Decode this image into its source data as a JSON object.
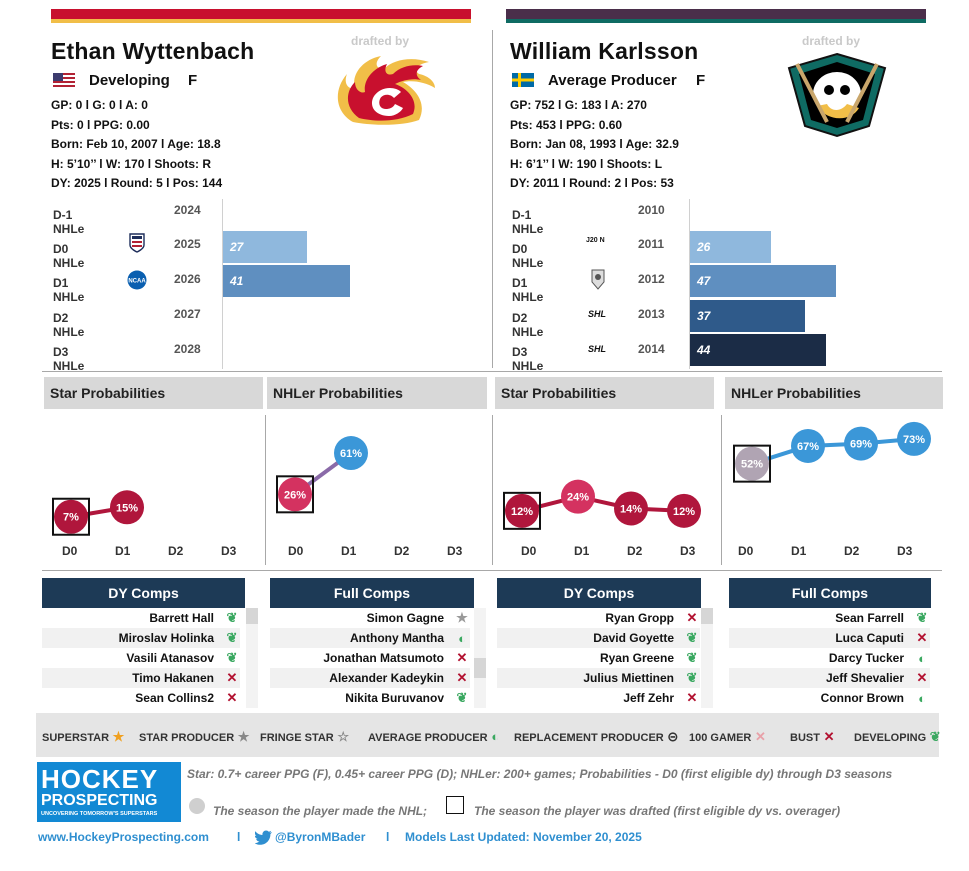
{
  "left": {
    "stripe_color_top": "#c8102e",
    "stripe_color_bottom": "#f1be48",
    "name": "Ethan Wyttenbach",
    "status": "Developing",
    "position": "F",
    "flag": "usa-flag-icon",
    "drafted_by_label": "drafted by",
    "team_logo": "calgary-flames-logo",
    "stats": [
      "GP: 0 l G: 0 l A: 0",
      "Pts: 0 l PPG: 0.00",
      "Born: Feb 10, 2007 l Age: 18.8",
      "H: 5’10’’ l W: 170 l Shoots: R",
      "DY: 2025 l Round: 5 l Pos: 144"
    ],
    "nhle_rows": [
      {
        "label": "D-1 NHLe",
        "year": "2024",
        "league_icon": "",
        "value": ""
      },
      {
        "label": "D0 NHLe",
        "year": "2025",
        "league_icon": "usa-hockey-icon",
        "value": "27"
      },
      {
        "label": "D1 NHLe",
        "year": "2026",
        "league_icon": "ncaa-icon",
        "value": "41"
      },
      {
        "label": "D2 NHLe",
        "year": "2027",
        "league_icon": "",
        "value": ""
      },
      {
        "label": "D3 NHLe",
        "year": "2028",
        "league_icon": "",
        "value": ""
      }
    ],
    "star_title": "Star Probabilities",
    "nhler_title": "NHLer Probabilities",
    "star_probs": [
      "7%",
      "15%"
    ],
    "nhler_probs": [
      "26%",
      "61%"
    ],
    "dy_comps_title": "DY Comps",
    "full_comps_title": "Full Comps",
    "dy_comps": [
      {
        "name": "Barrett Hall",
        "icon": "developing-leaf-icon"
      },
      {
        "name": "Miroslav Holinka",
        "icon": "developing-leaf-icon"
      },
      {
        "name": "Vasili Atanasov",
        "icon": "developing-leaf-icon"
      },
      {
        "name": "Timo Hakanen",
        "icon": "bust-x-icon"
      },
      {
        "name": "Sean Collins2",
        "icon": "bust-x-icon"
      }
    ],
    "full_comps": [
      {
        "name": "Simon Gagne",
        "icon": "star-producer-star-icon"
      },
      {
        "name": "Anthony Mantha",
        "icon": "average-producer-half-icon"
      },
      {
        "name": "Jonathan Matsumoto",
        "icon": "bust-x-icon"
      },
      {
        "name": "Alexander Kadeykin",
        "icon": "bust-x-icon"
      },
      {
        "name": "Nikita Buruvanov",
        "icon": "developing-leaf-icon"
      }
    ]
  },
  "right": {
    "stripe_color_top": "#4a2e4a",
    "stripe_color_bottom": "#0f6b63",
    "name": "William Karlsson",
    "status": "Average Producer",
    "position": "F",
    "flag": "sweden-flag-icon",
    "drafted_by_label": "drafted by",
    "team_logo": "anaheim-ducks-logo",
    "stats": [
      "GP: 752 l G: 183 l A: 270",
      "Pts: 453 l PPG: 0.60",
      "Born: Jan 08, 1993 l Age: 32.9",
      "H: 6’1’’ l W: 190 l Shoots: L",
      "DY: 2011 l Round: 2 l Pos: 53"
    ],
    "nhle_rows": [
      {
        "label": "D-1 NHLe",
        "year": "2010",
        "league_icon": "",
        "value": ""
      },
      {
        "label": "D0 NHLe",
        "year": "2011",
        "league_icon": "J20 N",
        "value": "26"
      },
      {
        "label": "D1 NHLe",
        "year": "2012",
        "league_icon": "league-badge-icon",
        "value": "47"
      },
      {
        "label": "D2 NHLe",
        "year": "2013",
        "league_icon": "SHL",
        "value": "37"
      },
      {
        "label": "D3 NHLe",
        "year": "2014",
        "league_icon": "SHL",
        "value": "44"
      }
    ],
    "star_title": "Star Probabilities",
    "nhler_title": "NHLer Probabilities",
    "star_probs": [
      "12%",
      "24%",
      "14%",
      "12%"
    ],
    "nhler_probs": [
      "52%",
      "67%",
      "69%",
      "73%"
    ],
    "dy_comps_title": "DY Comps",
    "full_comps_title": "Full Comps",
    "dy_comps": [
      {
        "name": "Ryan Gropp",
        "icon": "bust-x-icon"
      },
      {
        "name": "David Goyette",
        "icon": "developing-leaf-icon"
      },
      {
        "name": "Ryan Greene",
        "icon": "developing-leaf-icon"
      },
      {
        "name": "Julius Miettinen",
        "icon": "developing-leaf-icon"
      },
      {
        "name": "Jeff Zehr",
        "icon": "bust-x-icon"
      }
    ],
    "full_comps": [
      {
        "name": "Sean Farrell",
        "icon": "developing-leaf-icon"
      },
      {
        "name": "Luca Caputi",
        "icon": "bust-x-icon"
      },
      {
        "name": "Darcy Tucker",
        "icon": "average-producer-half-icon"
      },
      {
        "name": "Jeff Shevalier",
        "icon": "bust-x-icon"
      },
      {
        "name": "Connor Brown",
        "icon": "average-producer-half-icon"
      }
    ]
  },
  "season_labels": [
    "D0",
    "D1",
    "D2",
    "D3"
  ],
  "legend": [
    {
      "label": "SUPERSTAR",
      "icon": "superstar-icon"
    },
    {
      "label": "STAR PRODUCER",
      "icon": "star-producer-icon"
    },
    {
      "label": "FRINGE STAR",
      "icon": "fringe-star-icon"
    },
    {
      "label": "AVERAGE PRODUCER",
      "icon": "average-producer-icon"
    },
    {
      "label": "REPLACEMENT PRODUCER",
      "icon": "replacement-producer-icon"
    },
    {
      "label": "100 GAMER",
      "icon": "100-gamer-icon"
    },
    {
      "label": "BUST",
      "icon": "bust-icon"
    },
    {
      "label": "DEVELOPING",
      "icon": "developing-icon"
    }
  ],
  "footer": {
    "logo_line1": "HOCKEY",
    "logo_line2": "PROSPECTING",
    "logo_tagline": "UNCOVERING TOMORROW'S SUPERSTARS",
    "note": "Star: 0.7+ career PPG (F), 0.45+ career PPG (D); NHLer: 200+ games; Probabilities - D0 (first eligible dy) through D3 seasons",
    "made_nhl": "The season the player made the NHL;",
    "drafted_note": "The season the player was drafted (first eligible dy vs. overager)",
    "website": "www.HockeyProspecting.com",
    "separator": "l",
    "twitter": "@ByronMBader",
    "updated": "Models Last Updated: November 20, 2025"
  },
  "colors": {
    "bar_d0": "#8fb8dd",
    "bar_d1": "#5f8fc0",
    "bar_d2": "#2f5a8a",
    "bar_d3": "#1b2c46",
    "star_color": "#b0163c",
    "nhler_color": "#3b97d8",
    "drafted_pink": "#d43260",
    "grey_dot": "#b0a4b3",
    "navy": "#1d3a56"
  }
}
